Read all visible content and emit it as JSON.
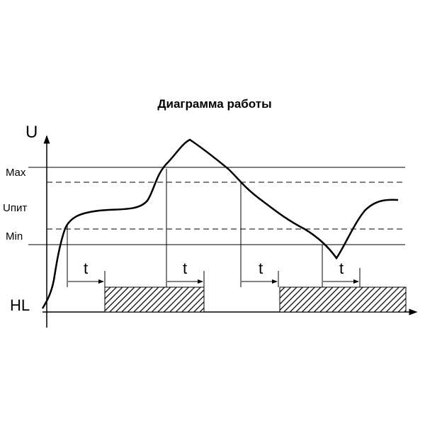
{
  "header": {
    "title": "Диаграмма работы"
  },
  "axes": {
    "y_label": "U",
    "output_label": "HL"
  },
  "levels": {
    "max": "Max",
    "supply": "Uпит",
    "min": "Min"
  },
  "delays": [
    "t",
    "t",
    "t",
    "t"
  ]
}
